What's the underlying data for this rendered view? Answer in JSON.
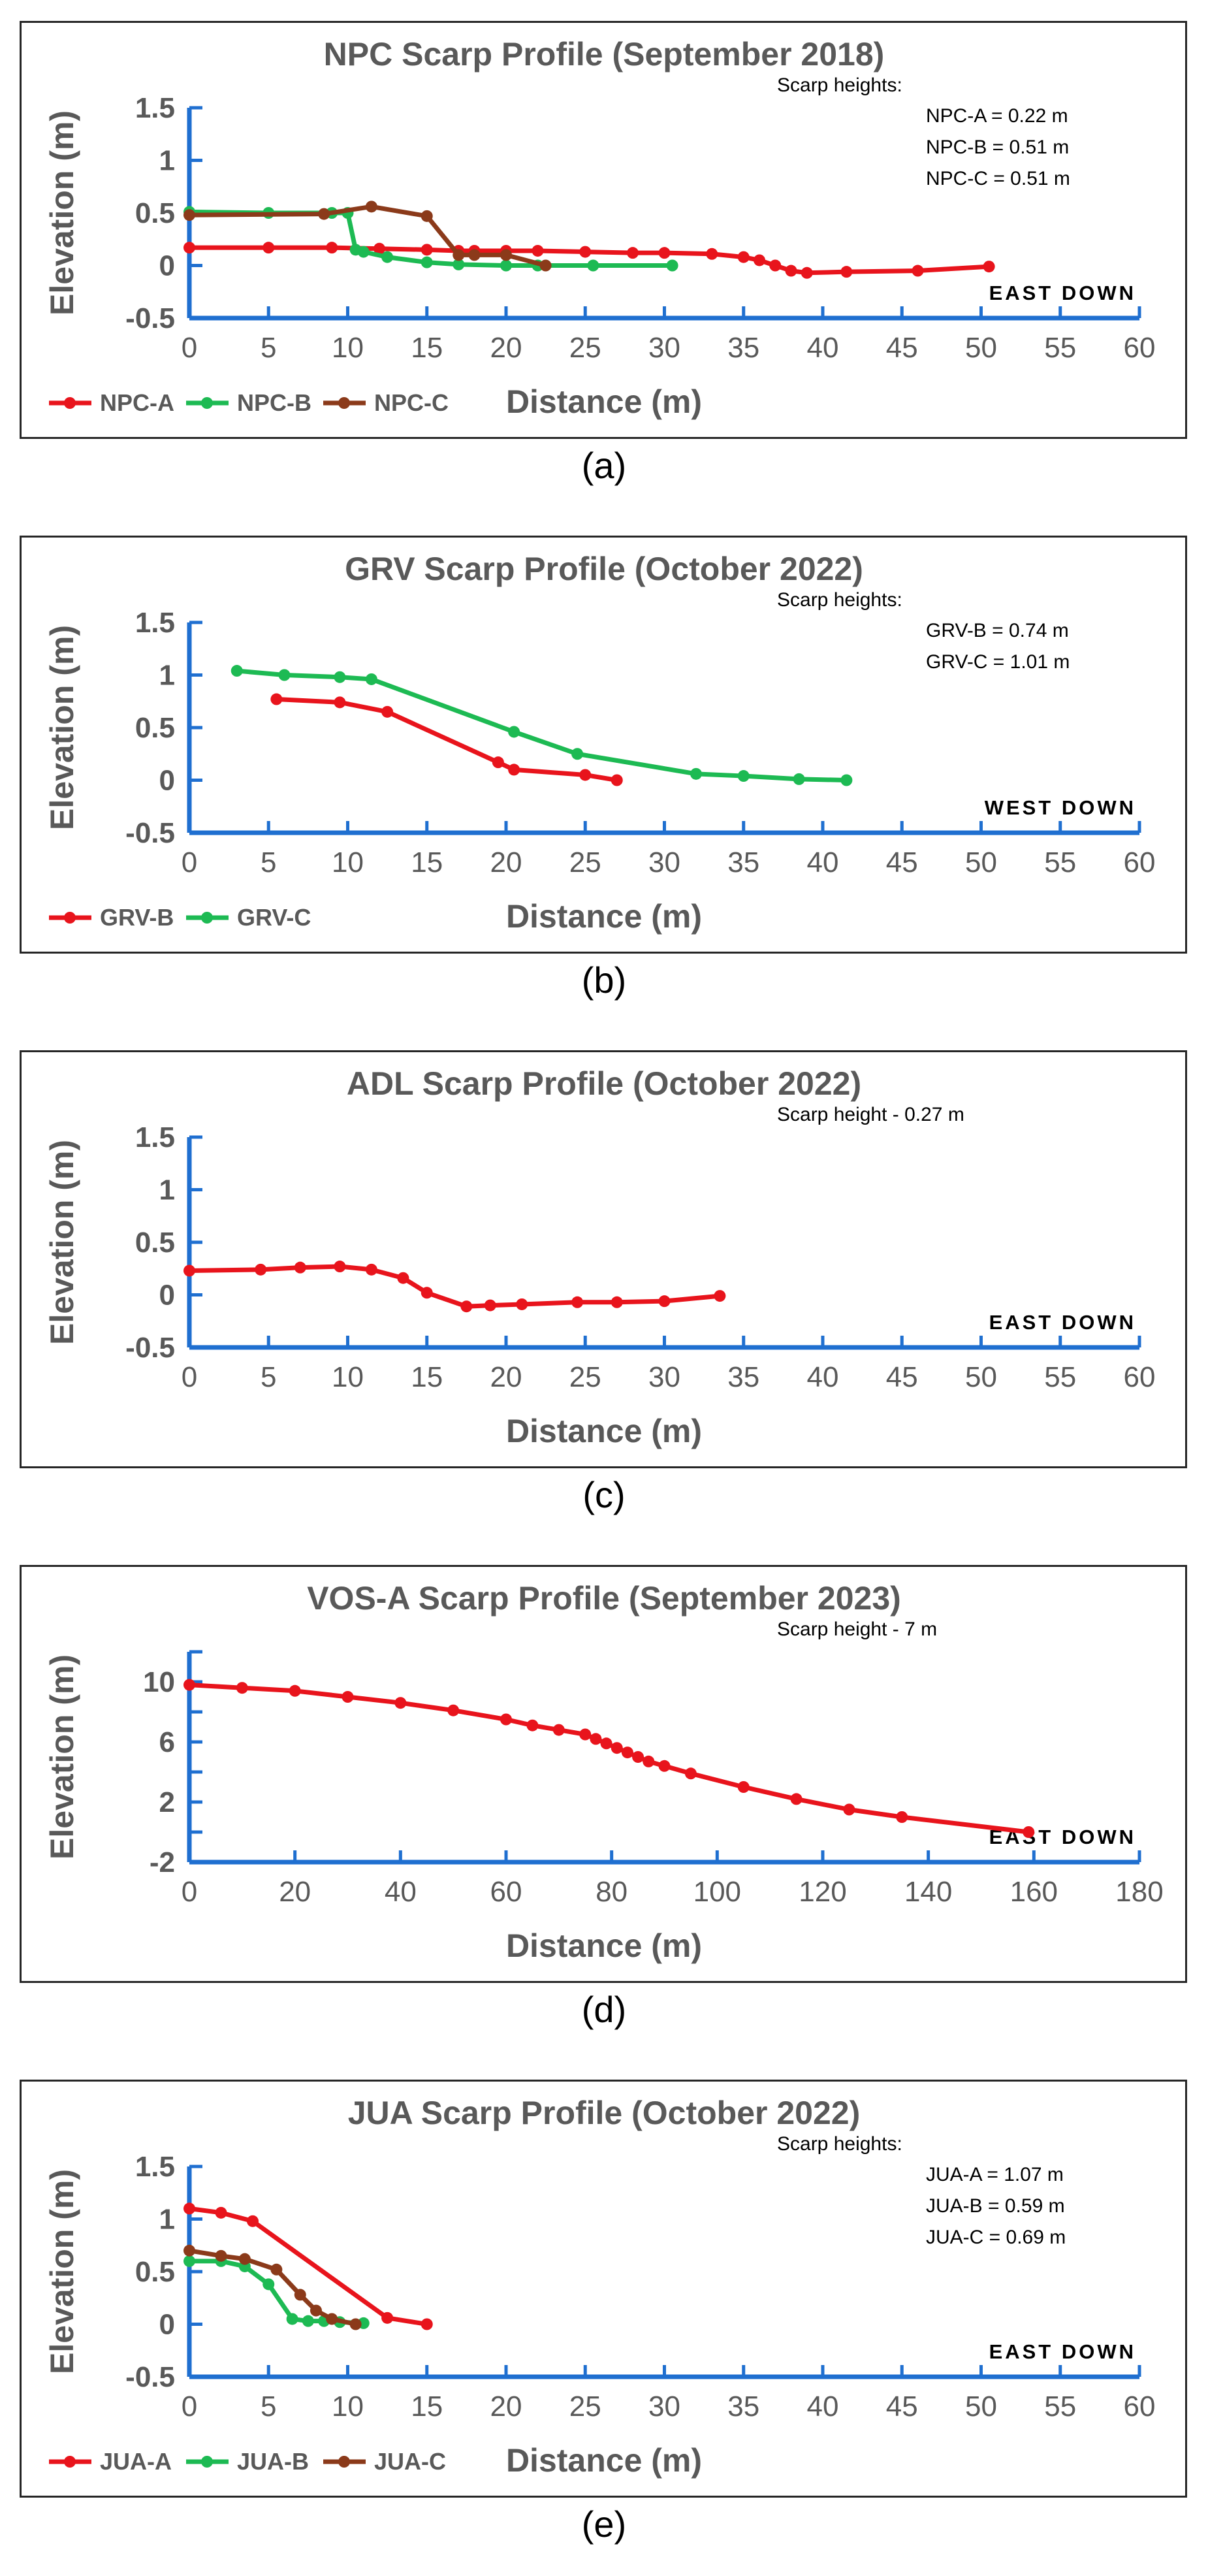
{
  "chart_data": [
    {
      "id": "a",
      "caption": "(a)",
      "type": "line",
      "title": "NPC Scarp Profile (September 2018)",
      "xlabel": "Distance (m)",
      "ylabel": "Elevation (m)",
      "xlim": [
        0,
        60
      ],
      "ylim": [
        -0.5,
        1.5
      ],
      "xticks": [
        0,
        5,
        10,
        15,
        20,
        25,
        30,
        35,
        40,
        45,
        50,
        55,
        60
      ],
      "yticks": [
        -0.5,
        0,
        0.5,
        1,
        1.5
      ],
      "ytick_labels": [
        "-0.5",
        "0",
        "0.5",
        "1",
        "1.5"
      ],
      "direction_label": "EAST DOWN",
      "annotation": {
        "heading": "Scarp heights:",
        "lines": [
          "NPC-A = 0.22 m",
          "NPC-B = 0.51 m",
          "NPC-C = 0.51 m"
        ]
      },
      "series": [
        {
          "name": "NPC-A",
          "color": "#e8141c",
          "x": [
            0,
            5,
            9,
            12,
            15,
            17,
            18,
            20,
            22,
            25,
            28,
            30,
            33,
            35,
            36,
            37,
            38,
            39,
            41.5,
            46,
            50.5
          ],
          "y": [
            0.17,
            0.17,
            0.17,
            0.16,
            0.15,
            0.14,
            0.14,
            0.14,
            0.14,
            0.13,
            0.12,
            0.12,
            0.11,
            0.08,
            0.05,
            0,
            -0.05,
            -0.07,
            -0.06,
            -0.05,
            -0.01
          ]
        },
        {
          "name": "NPC-B",
          "color": "#1dba53",
          "x": [
            0,
            5,
            9,
            10,
            10.5,
            11,
            12.5,
            15,
            17,
            20,
            22,
            25.5,
            30.5
          ],
          "y": [
            0.51,
            0.5,
            0.5,
            0.5,
            0.15,
            0.13,
            0.08,
            0.03,
            0.01,
            0,
            0,
            0,
            0
          ]
        },
        {
          "name": "NPC-C",
          "color": "#8b3a1a",
          "x": [
            0,
            8.5,
            11.5,
            15,
            17,
            18,
            20,
            22.5
          ],
          "y": [
            0.48,
            0.49,
            0.56,
            0.47,
            0.1,
            0.1,
            0.1,
            0
          ]
        }
      ]
    },
    {
      "id": "b",
      "caption": "(b)",
      "type": "line",
      "title": "GRV Scarp Profile (October 2022)",
      "xlabel": "Distance (m)",
      "ylabel": "Elevation (m)",
      "xlim": [
        0,
        60
      ],
      "ylim": [
        -0.5,
        1.5
      ],
      "xticks": [
        0,
        5,
        10,
        15,
        20,
        25,
        30,
        35,
        40,
        45,
        50,
        55,
        60
      ],
      "yticks": [
        -0.5,
        0,
        0.5,
        1,
        1.5
      ],
      "ytick_labels": [
        "-0.5",
        "0",
        "0.5",
        "1",
        "1.5"
      ],
      "direction_label": "WEST DOWN",
      "annotation": {
        "heading": "Scarp heights:",
        "lines": [
          "GRV-B = 0.74 m",
          "GRV-C = 1.01 m"
        ]
      },
      "series": [
        {
          "name": "GRV-B",
          "color": "#e8141c",
          "x": [
            5.5,
            9.5,
            12.5,
            19.5,
            20.5,
            25,
            27
          ],
          "y": [
            0.77,
            0.74,
            0.65,
            0.17,
            0.1,
            0.05,
            0
          ]
        },
        {
          "name": "GRV-C",
          "color": "#1dba53",
          "x": [
            3,
            6,
            9.5,
            11.5,
            20.5,
            24.5,
            32,
            35,
            38.5,
            41.5
          ],
          "y": [
            1.04,
            1,
            0.98,
            0.96,
            0.46,
            0.25,
            0.06,
            0.04,
            0.01,
            0
          ]
        }
      ]
    },
    {
      "id": "c",
      "caption": "(c)",
      "type": "line",
      "title": "ADL Scarp Profile (October 2022)",
      "xlabel": "Distance (m)",
      "ylabel": "Elevation (m)",
      "xlim": [
        0,
        60
      ],
      "ylim": [
        -0.5,
        1.5
      ],
      "xticks": [
        0,
        5,
        10,
        15,
        20,
        25,
        30,
        35,
        40,
        45,
        50,
        55,
        60
      ],
      "yticks": [
        -0.5,
        0,
        0.5,
        1,
        1.5
      ],
      "ytick_labels": [
        "-0.5",
        "0",
        "0.5",
        "1",
        "1.5"
      ],
      "direction_label": "EAST DOWN",
      "annotation": {
        "heading": "Scarp height - 0.27 m",
        "lines": []
      },
      "series": [
        {
          "name": "ADL",
          "color": "#e8141c",
          "x": [
            0,
            4.5,
            7,
            9.5,
            11.5,
            13.5,
            15,
            17.5,
            19,
            21,
            24.5,
            27,
            30,
            33.5
          ],
          "y": [
            0.23,
            0.24,
            0.26,
            0.27,
            0.24,
            0.16,
            0.02,
            -0.11,
            -0.1,
            -0.09,
            -0.07,
            -0.07,
            -0.06,
            -0.01
          ]
        }
      ]
    },
    {
      "id": "d",
      "caption": "(d)",
      "type": "line",
      "title": "VOS-A Scarp Profile (September 2023)",
      "xlabel": "Distance (m)",
      "ylabel": "Elevation (m)",
      "xlim": [
        0,
        180
      ],
      "ylim": [
        -2,
        12
      ],
      "xticks": [
        0,
        20,
        40,
        60,
        80,
        100,
        120,
        140,
        160,
        180
      ],
      "yticks": [
        -2,
        0,
        2,
        4,
        6,
        8,
        10,
        12
      ],
      "ytick_labels": [
        "-2",
        "",
        "2",
        "",
        "6",
        "",
        "10",
        ""
      ],
      "direction_label": "EAST DOWN",
      "annotation": {
        "heading": "Scarp height - 7 m",
        "lines": []
      },
      "series": [
        {
          "name": "VOS-A",
          "color": "#e8141c",
          "x": [
            0,
            10,
            20,
            30,
            40,
            50,
            60,
            65,
            70,
            75,
            77,
            79,
            81,
            83,
            85,
            87,
            90,
            95,
            105,
            115,
            125,
            135,
            159
          ],
          "y": [
            9.8,
            9.6,
            9.4,
            9.0,
            8.6,
            8.1,
            7.5,
            7.1,
            6.8,
            6.5,
            6.2,
            5.9,
            5.6,
            5.3,
            5.0,
            4.7,
            4.4,
            3.9,
            3.0,
            2.2,
            1.5,
            1.0,
            0.0
          ]
        }
      ]
    },
    {
      "id": "e",
      "caption": "(e)",
      "type": "line",
      "title": "JUA Scarp Profile (October 2022)",
      "xlabel": "Distance (m)",
      "ylabel": "Elevation (m)",
      "xlim": [
        0,
        60
      ],
      "ylim": [
        -0.5,
        1.5
      ],
      "xticks": [
        0,
        5,
        10,
        15,
        20,
        25,
        30,
        35,
        40,
        45,
        50,
        55,
        60
      ],
      "yticks": [
        -0.5,
        0,
        0.5,
        1,
        1.5
      ],
      "ytick_labels": [
        "-0.5",
        "0",
        "0.5",
        "1",
        "1.5"
      ],
      "direction_label": "EAST DOWN",
      "annotation": {
        "heading": "Scarp heights:",
        "lines": [
          "JUA-A = 1.07 m",
          "JUA-B = 0.59 m",
          "JUA-C = 0.69 m"
        ]
      },
      "series": [
        {
          "name": "JUA-A",
          "color": "#e8141c",
          "x": [
            0,
            2,
            4,
            12.5,
            15
          ],
          "y": [
            1.1,
            1.06,
            0.98,
            0.06,
            0
          ]
        },
        {
          "name": "JUA-B",
          "color": "#1dba53",
          "x": [
            0,
            2,
            3.5,
            5,
            6.5,
            7.5,
            8.5,
            9.5,
            11
          ],
          "y": [
            0.6,
            0.6,
            0.55,
            0.38,
            0.05,
            0.03,
            0.03,
            0.02,
            0.01
          ]
        },
        {
          "name": "JUA-C",
          "color": "#8b3a1a",
          "x": [
            0,
            2,
            3.5,
            5.5,
            7,
            8,
            9,
            10.5
          ],
          "y": [
            0.7,
            0.65,
            0.62,
            0.52,
            0.28,
            0.13,
            0.05,
            0
          ]
        }
      ]
    }
  ]
}
